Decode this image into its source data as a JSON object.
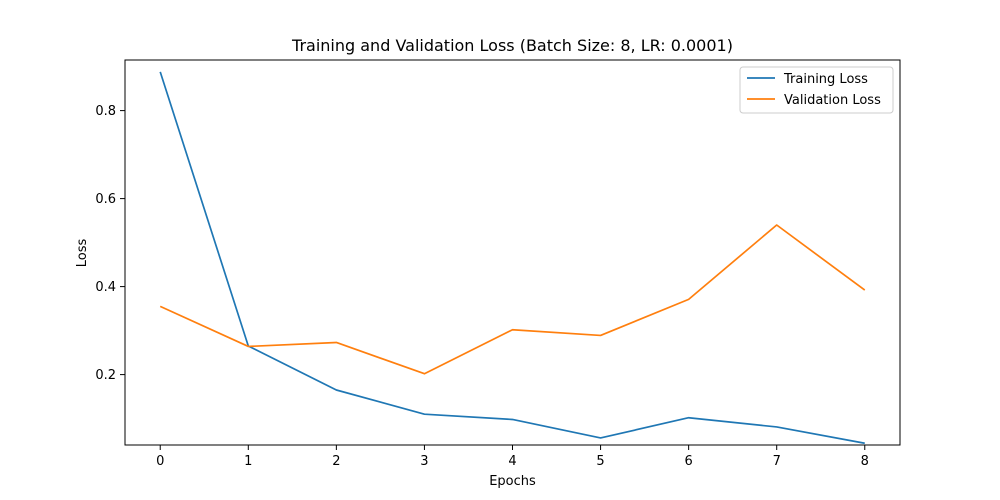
{
  "chart_data": {
    "type": "line",
    "title": "Training and Validation Loss (Batch Size: 8, LR: 0.0001)",
    "xlabel": "Epochs",
    "ylabel": "Loss",
    "x": [
      0,
      1,
      2,
      3,
      4,
      5,
      6,
      7,
      8
    ],
    "xlim": [
      -0.4,
      8.4
    ],
    "ylim": [
      0.04,
      0.915
    ],
    "xticks": [
      "0",
      "1",
      "2",
      "3",
      "4",
      "5",
      "6",
      "7",
      "8"
    ],
    "yticks": [
      "0.2",
      "0.4",
      "0.6",
      "0.8"
    ],
    "grid": false,
    "legend_position": "top-right",
    "series": [
      {
        "name": "Training Loss",
        "color": "#1f77b4",
        "values": [
          0.888,
          0.265,
          0.165,
          0.11,
          0.098,
          0.056,
          0.102,
          0.081,
          0.044
        ]
      },
      {
        "name": "Validation Loss",
        "color": "#ff7f0e",
        "values": [
          0.355,
          0.264,
          0.273,
          0.202,
          0.302,
          0.289,
          0.371,
          0.54,
          0.392
        ]
      }
    ]
  }
}
